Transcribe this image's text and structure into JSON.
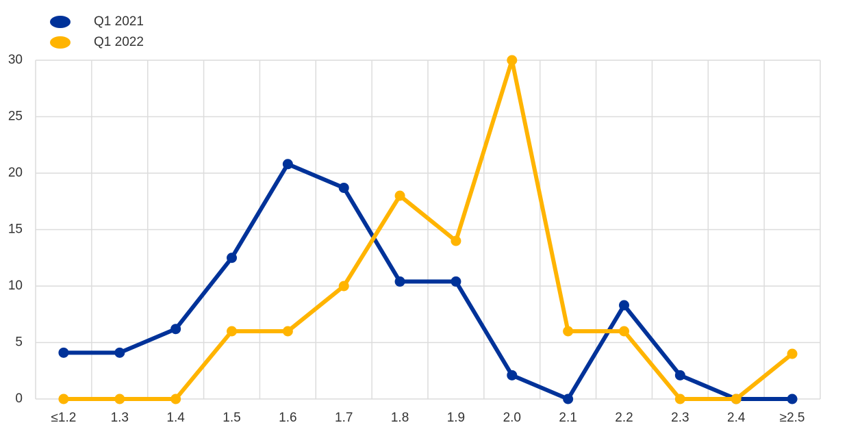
{
  "chart_data": {
    "type": "line",
    "categories": [
      "≤1.2",
      "1.3",
      "1.4",
      "1.5",
      "1.6",
      "1.7",
      "1.8",
      "1.9",
      "2.0",
      "2.1",
      "2.2",
      "2.3",
      "2.4",
      "≥2.5"
    ],
    "series": [
      {
        "name": "Q1 2021",
        "color": "#003299",
        "values": [
          4.1,
          4.1,
          6.2,
          12.5,
          20.8,
          18.7,
          10.4,
          10.4,
          2.1,
          0,
          8.3,
          2.1,
          0,
          0
        ]
      },
      {
        "name": "Q1 2022",
        "color": "#ffb400",
        "values": [
          0,
          0,
          0,
          6,
          6,
          10,
          18,
          14,
          30,
          6,
          6,
          0,
          0,
          4
        ]
      }
    ],
    "ylim": [
      0,
      30
    ],
    "yticks": [
      0,
      5,
      10,
      15,
      20,
      25,
      30
    ],
    "grid": true,
    "legend": "top-left"
  }
}
